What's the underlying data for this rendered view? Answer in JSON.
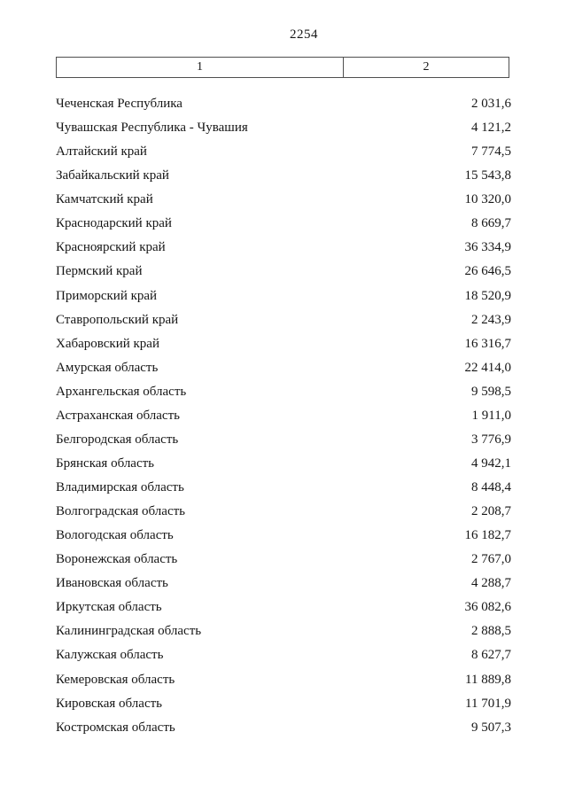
{
  "page": {
    "number": "2254"
  },
  "table": {
    "header": {
      "col1": "1",
      "col2": "2"
    },
    "rows": [
      {
        "name": "Чеченская Республика",
        "value": "2 031,6"
      },
      {
        "name": "Чувашская Республика - Чувашия",
        "value": "4 121,2"
      },
      {
        "name": "Алтайский край",
        "value": "7 774,5"
      },
      {
        "name": "Забайкальский край",
        "value": "15 543,8"
      },
      {
        "name": "Камчатский край",
        "value": "10 320,0"
      },
      {
        "name": "Краснодарский край",
        "value": "8 669,7"
      },
      {
        "name": "Красноярский край",
        "value": "36 334,9"
      },
      {
        "name": "Пермский край",
        "value": "26 646,5"
      },
      {
        "name": "Приморский край",
        "value": "18 520,9"
      },
      {
        "name": "Ставропольский край",
        "value": "2 243,9"
      },
      {
        "name": "Хабаровский край",
        "value": "16 316,7"
      },
      {
        "name": "Амурская область",
        "value": "22 414,0"
      },
      {
        "name": "Архангельская область",
        "value": "9 598,5"
      },
      {
        "name": "Астраханская область",
        "value": "1 911,0"
      },
      {
        "name": "Белгородская область",
        "value": "3 776,9"
      },
      {
        "name": "Брянская область",
        "value": "4 942,1"
      },
      {
        "name": "Владимирская область",
        "value": "8 448,4"
      },
      {
        "name": "Волгоградская область",
        "value": "2 208,7"
      },
      {
        "name": "Вологодская область",
        "value": "16 182,7"
      },
      {
        "name": "Воронежская область",
        "value": "2 767,0"
      },
      {
        "name": "Ивановская область",
        "value": "4 288,7"
      },
      {
        "name": "Иркутская область",
        "value": "36 082,6"
      },
      {
        "name": "Калининградская область",
        "value": "2 888,5"
      },
      {
        "name": "Калужская область",
        "value": "8 627,7"
      },
      {
        "name": "Кемеровская область",
        "value": "11 889,8"
      },
      {
        "name": "Кировская область",
        "value": "11 701,9"
      },
      {
        "name": "Костромская область",
        "value": "9 507,3"
      }
    ]
  }
}
